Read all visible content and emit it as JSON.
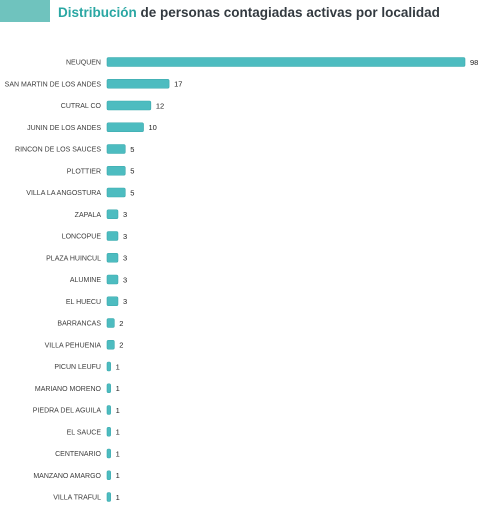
{
  "header": {
    "title_highlight": "Distribución",
    "title_rest": " de personas contagiadas activas por localidad"
  },
  "colors": {
    "accent": "#2aa7a3",
    "bar": "#4dbcc0",
    "bar_edge": "#3aa9ad",
    "title_text": "#333a40"
  },
  "chart_data": {
    "type": "bar",
    "orientation": "horizontal",
    "title": "Distribución de personas contagiadas activas por localidad",
    "xlabel": "",
    "ylabel": "",
    "xlim": [
      0,
      98
    ],
    "grid": false,
    "data_labels": true,
    "categories": [
      "NEUQUEN",
      "SAN MARTIN DE LOS ANDES",
      "CUTRAL CO",
      "JUNIN DE LOS ANDES",
      "RINCON DE LOS SAUCES",
      "PLOTTIER",
      "VILLA LA ANGOSTURA",
      "ZAPALA",
      "LONCOPUE",
      "PLAZA HUINCUL",
      "ALUMINE",
      "EL HUECU",
      "BARRANCAS",
      "VILLA PEHUENIA",
      "PICUN LEUFU",
      "MARIANO MORENO",
      "PIEDRA DEL AGUILA",
      "EL SAUCE",
      "CENTENARIO",
      "MANZANO AMARGO",
      "VILLA TRAFUL"
    ],
    "values": [
      98,
      17,
      12,
      10,
      5,
      5,
      5,
      3,
      3,
      3,
      3,
      3,
      2,
      2,
      1,
      1,
      1,
      1,
      1,
      1,
      1
    ]
  }
}
